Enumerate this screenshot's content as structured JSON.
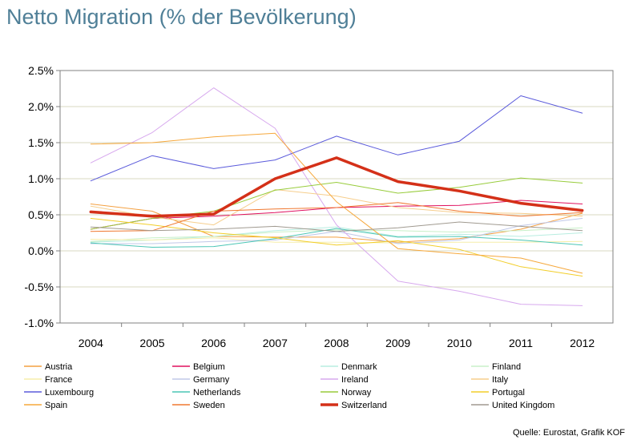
{
  "title": "Netto Migration (% der Bevölkerung)",
  "source": "Quelle: Eurostat, Grafik KOF",
  "chart_data": {
    "type": "line",
    "x": [
      "2004",
      "2005",
      "2006",
      "2007",
      "2008",
      "2009",
      "2010",
      "2011",
      "2012"
    ],
    "y_ticks": [
      "2.5%",
      "2.0%",
      "1.5%",
      "1.0%",
      "0.5%",
      "0.0%",
      "-0.5%",
      "-1.0%"
    ],
    "ylim": [
      -1.0,
      2.5
    ],
    "ytick_step": 0.5,
    "grid": true,
    "legend_position": "bottom",
    "series": [
      {
        "name": "Austria",
        "color": "#f4a040",
        "width": 1,
        "values": [
          0.65,
          0.55,
          0.2,
          0.19,
          0.19,
          0.12,
          0.17,
          0.3,
          0.52
        ]
      },
      {
        "name": "Belgium",
        "color": "#e0115f",
        "width": 1,
        "values": [
          0.3,
          0.45,
          0.48,
          0.53,
          0.6,
          0.62,
          0.63,
          0.7,
          0.65
        ]
      },
      {
        "name": "Denmark",
        "color": "#b8ede0",
        "width": 1,
        "values": [
          0.12,
          0.15,
          0.2,
          0.28,
          0.33,
          0.2,
          0.23,
          0.2,
          0.25
        ]
      },
      {
        "name": "Finland",
        "color": "#c8f0c8",
        "width": 1,
        "values": [
          0.13,
          0.18,
          0.2,
          0.26,
          0.29,
          0.28,
          0.26,
          0.28,
          0.32
        ]
      },
      {
        "name": "France",
        "color": "#f6eeaa",
        "width": 1,
        "values": [
          0.16,
          0.15,
          0.18,
          0.12,
          0.12,
          0.11,
          0.12,
          0.12,
          0.13
        ]
      },
      {
        "name": "Germany",
        "color": "#c0c8e8",
        "width": 1,
        "values": [
          0.1,
          0.1,
          0.13,
          0.15,
          0.27,
          0.1,
          0.15,
          0.35,
          0.45
        ]
      },
      {
        "name": "Ireland",
        "color": "#d7a8ee",
        "width": 1,
        "values": [
          1.22,
          1.64,
          2.26,
          1.7,
          0.36,
          -0.42,
          -0.56,
          -0.74,
          -0.76
        ]
      },
      {
        "name": "Italy",
        "color": "#f6ce8c",
        "width": 1,
        "values": [
          0.62,
          0.47,
          0.36,
          0.85,
          0.76,
          0.6,
          0.53,
          0.52,
          0.48
        ]
      },
      {
        "name": "Luxembourg",
        "color": "#5b5bdb",
        "width": 1,
        "values": [
          0.97,
          1.32,
          1.14,
          1.26,
          1.59,
          1.33,
          1.52,
          2.15,
          1.91
        ]
      },
      {
        "name": "Netherlands",
        "color": "#4cc6b6",
        "width": 1,
        "values": [
          0.11,
          0.05,
          0.06,
          0.17,
          0.31,
          0.19,
          0.2,
          0.15,
          0.08
        ]
      },
      {
        "name": "Norway",
        "color": "#98cc3c",
        "width": 1,
        "values": [
          0.3,
          0.45,
          0.55,
          0.84,
          0.95,
          0.8,
          0.88,
          1.01,
          0.94
        ]
      },
      {
        "name": "Portugal",
        "color": "#f2ce2a",
        "width": 1,
        "values": [
          0.45,
          0.36,
          0.25,
          0.18,
          0.08,
          0.14,
          0.02,
          -0.22,
          -0.35
        ]
      },
      {
        "name": "Spain",
        "color": "#f6a83c",
        "width": 1,
        "values": [
          1.48,
          1.5,
          1.58,
          1.63,
          0.68,
          0.03,
          -0.04,
          -0.1,
          -0.31
        ]
      },
      {
        "name": "Sweden",
        "color": "#f07830",
        "width": 1,
        "values": [
          0.27,
          0.28,
          0.55,
          0.58,
          0.6,
          0.67,
          0.55,
          0.48,
          0.53
        ]
      },
      {
        "name": "Switzerland",
        "color": "#d43018",
        "width": 3.5,
        "values": [
          0.54,
          0.48,
          0.51,
          1.0,
          1.29,
          0.96,
          0.83,
          0.66,
          0.56
        ]
      },
      {
        "name": "United Kingdom",
        "color": "#a09a90",
        "width": 1,
        "values": [
          0.33,
          0.28,
          0.3,
          0.34,
          0.27,
          0.32,
          0.4,
          0.34,
          0.28
        ]
      }
    ]
  }
}
